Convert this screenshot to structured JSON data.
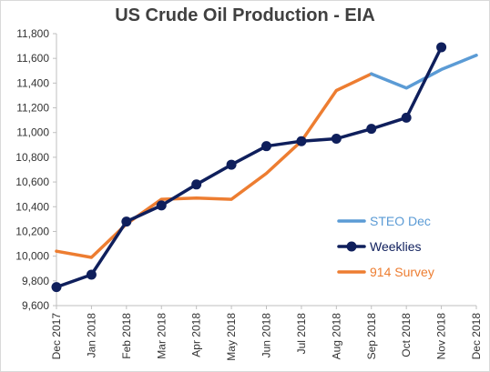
{
  "chart_data": {
    "type": "line",
    "title": "US Crude Oil Production - EIA",
    "categories": [
      "Dec 2017",
      "Jan 2018",
      "Feb 2018",
      "Mar 2018",
      "Apr 2018",
      "May 2018",
      "Jun 2018",
      "Jul 2018",
      "Aug 2018",
      "Sep 2018",
      "Oct 2018",
      "Nov 2018",
      "Dec 2018"
    ],
    "ylim": [
      9600,
      11800
    ],
    "yticks": [
      "9,600",
      "9,800",
      "10,000",
      "10,200",
      "10,400",
      "10,600",
      "10,800",
      "11,000",
      "11,200",
      "11,400",
      "11,600",
      "11,800"
    ],
    "grid": false,
    "legend_position": "lower-right",
    "series": [
      {
        "name": "STEO Dec",
        "color": "#5b9bd5",
        "markers": false,
        "values": [
          null,
          null,
          null,
          null,
          null,
          null,
          null,
          null,
          null,
          11475,
          11360,
          11510,
          11625
        ]
      },
      {
        "name": "Weeklies",
        "color": "#0f1f5c",
        "markers": true,
        "values": [
          9750,
          9850,
          10280,
          10410,
          10580,
          10740,
          10890,
          10930,
          10950,
          11030,
          11120,
          11690,
          null
        ]
      },
      {
        "name": "914 Survey",
        "color": "#ed7d31",
        "markers": false,
        "values": [
          10040,
          9990,
          10260,
          10460,
          10470,
          10460,
          10670,
          10930,
          11340,
          11475,
          null,
          null,
          null
        ]
      }
    ]
  }
}
